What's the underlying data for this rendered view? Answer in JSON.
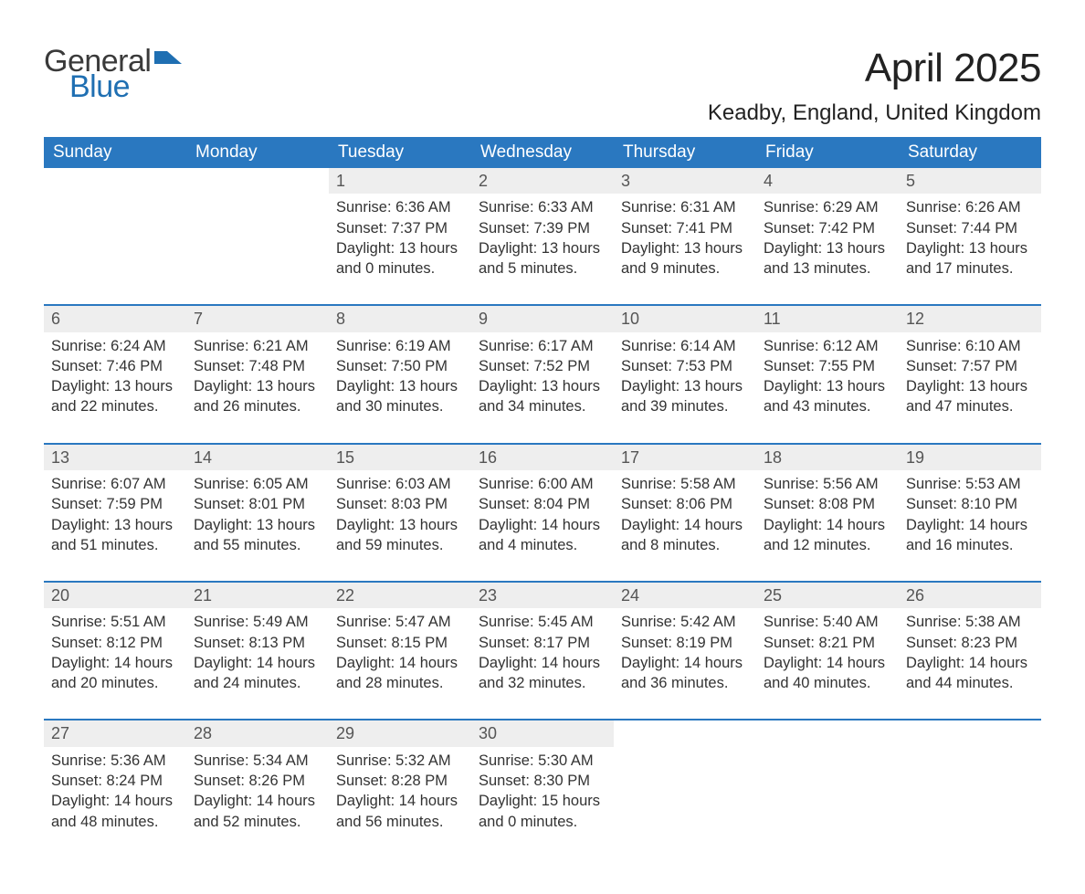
{
  "brand": {
    "general": "General",
    "blue": "Blue",
    "flag_color": "#1f6fb2"
  },
  "title": "April 2025",
  "location": "Keadby, England, United Kingdom",
  "colors": {
    "header_bg": "#2a78c0",
    "header_text": "#ffffff",
    "daynum_bg": "#eeeeee",
    "border": "#2a78c0",
    "text": "#333333"
  },
  "day_headers": [
    "Sunday",
    "Monday",
    "Tuesday",
    "Wednesday",
    "Thursday",
    "Friday",
    "Saturday"
  ],
  "weeks": [
    [
      {
        "n": "",
        "sunrise": "",
        "sunset": "",
        "daylight": ""
      },
      {
        "n": "",
        "sunrise": "",
        "sunset": "",
        "daylight": ""
      },
      {
        "n": "1",
        "sunrise": "Sunrise: 6:36 AM",
        "sunset": "Sunset: 7:37 PM",
        "daylight": "Daylight: 13 hours and 0 minutes."
      },
      {
        "n": "2",
        "sunrise": "Sunrise: 6:33 AM",
        "sunset": "Sunset: 7:39 PM",
        "daylight": "Daylight: 13 hours and 5 minutes."
      },
      {
        "n": "3",
        "sunrise": "Sunrise: 6:31 AM",
        "sunset": "Sunset: 7:41 PM",
        "daylight": "Daylight: 13 hours and 9 minutes."
      },
      {
        "n": "4",
        "sunrise": "Sunrise: 6:29 AM",
        "sunset": "Sunset: 7:42 PM",
        "daylight": "Daylight: 13 hours and 13 minutes."
      },
      {
        "n": "5",
        "sunrise": "Sunrise: 6:26 AM",
        "sunset": "Sunset: 7:44 PM",
        "daylight": "Daylight: 13 hours and 17 minutes."
      }
    ],
    [
      {
        "n": "6",
        "sunrise": "Sunrise: 6:24 AM",
        "sunset": "Sunset: 7:46 PM",
        "daylight": "Daylight: 13 hours and 22 minutes."
      },
      {
        "n": "7",
        "sunrise": "Sunrise: 6:21 AM",
        "sunset": "Sunset: 7:48 PM",
        "daylight": "Daylight: 13 hours and 26 minutes."
      },
      {
        "n": "8",
        "sunrise": "Sunrise: 6:19 AM",
        "sunset": "Sunset: 7:50 PM",
        "daylight": "Daylight: 13 hours and 30 minutes."
      },
      {
        "n": "9",
        "sunrise": "Sunrise: 6:17 AM",
        "sunset": "Sunset: 7:52 PM",
        "daylight": "Daylight: 13 hours and 34 minutes."
      },
      {
        "n": "10",
        "sunrise": "Sunrise: 6:14 AM",
        "sunset": "Sunset: 7:53 PM",
        "daylight": "Daylight: 13 hours and 39 minutes."
      },
      {
        "n": "11",
        "sunrise": "Sunrise: 6:12 AM",
        "sunset": "Sunset: 7:55 PM",
        "daylight": "Daylight: 13 hours and 43 minutes."
      },
      {
        "n": "12",
        "sunrise": "Sunrise: 6:10 AM",
        "sunset": "Sunset: 7:57 PM",
        "daylight": "Daylight: 13 hours and 47 minutes."
      }
    ],
    [
      {
        "n": "13",
        "sunrise": "Sunrise: 6:07 AM",
        "sunset": "Sunset: 7:59 PM",
        "daylight": "Daylight: 13 hours and 51 minutes."
      },
      {
        "n": "14",
        "sunrise": "Sunrise: 6:05 AM",
        "sunset": "Sunset: 8:01 PM",
        "daylight": "Daylight: 13 hours and 55 minutes."
      },
      {
        "n": "15",
        "sunrise": "Sunrise: 6:03 AM",
        "sunset": "Sunset: 8:03 PM",
        "daylight": "Daylight: 13 hours and 59 minutes."
      },
      {
        "n": "16",
        "sunrise": "Sunrise: 6:00 AM",
        "sunset": "Sunset: 8:04 PM",
        "daylight": "Daylight: 14 hours and 4 minutes."
      },
      {
        "n": "17",
        "sunrise": "Sunrise: 5:58 AM",
        "sunset": "Sunset: 8:06 PM",
        "daylight": "Daylight: 14 hours and 8 minutes."
      },
      {
        "n": "18",
        "sunrise": "Sunrise: 5:56 AM",
        "sunset": "Sunset: 8:08 PM",
        "daylight": "Daylight: 14 hours and 12 minutes."
      },
      {
        "n": "19",
        "sunrise": "Sunrise: 5:53 AM",
        "sunset": "Sunset: 8:10 PM",
        "daylight": "Daylight: 14 hours and 16 minutes."
      }
    ],
    [
      {
        "n": "20",
        "sunrise": "Sunrise: 5:51 AM",
        "sunset": "Sunset: 8:12 PM",
        "daylight": "Daylight: 14 hours and 20 minutes."
      },
      {
        "n": "21",
        "sunrise": "Sunrise: 5:49 AM",
        "sunset": "Sunset: 8:13 PM",
        "daylight": "Daylight: 14 hours and 24 minutes."
      },
      {
        "n": "22",
        "sunrise": "Sunrise: 5:47 AM",
        "sunset": "Sunset: 8:15 PM",
        "daylight": "Daylight: 14 hours and 28 minutes."
      },
      {
        "n": "23",
        "sunrise": "Sunrise: 5:45 AM",
        "sunset": "Sunset: 8:17 PM",
        "daylight": "Daylight: 14 hours and 32 minutes."
      },
      {
        "n": "24",
        "sunrise": "Sunrise: 5:42 AM",
        "sunset": "Sunset: 8:19 PM",
        "daylight": "Daylight: 14 hours and 36 minutes."
      },
      {
        "n": "25",
        "sunrise": "Sunrise: 5:40 AM",
        "sunset": "Sunset: 8:21 PM",
        "daylight": "Daylight: 14 hours and 40 minutes."
      },
      {
        "n": "26",
        "sunrise": "Sunrise: 5:38 AM",
        "sunset": "Sunset: 8:23 PM",
        "daylight": "Daylight: 14 hours and 44 minutes."
      }
    ],
    [
      {
        "n": "27",
        "sunrise": "Sunrise: 5:36 AM",
        "sunset": "Sunset: 8:24 PM",
        "daylight": "Daylight: 14 hours and 48 minutes."
      },
      {
        "n": "28",
        "sunrise": "Sunrise: 5:34 AM",
        "sunset": "Sunset: 8:26 PM",
        "daylight": "Daylight: 14 hours and 52 minutes."
      },
      {
        "n": "29",
        "sunrise": "Sunrise: 5:32 AM",
        "sunset": "Sunset: 8:28 PM",
        "daylight": "Daylight: 14 hours and 56 minutes."
      },
      {
        "n": "30",
        "sunrise": "Sunrise: 5:30 AM",
        "sunset": "Sunset: 8:30 PM",
        "daylight": "Daylight: 15 hours and 0 minutes."
      },
      {
        "n": "",
        "sunrise": "",
        "sunset": "",
        "daylight": ""
      },
      {
        "n": "",
        "sunrise": "",
        "sunset": "",
        "daylight": ""
      },
      {
        "n": "",
        "sunrise": "",
        "sunset": "",
        "daylight": ""
      }
    ]
  ]
}
